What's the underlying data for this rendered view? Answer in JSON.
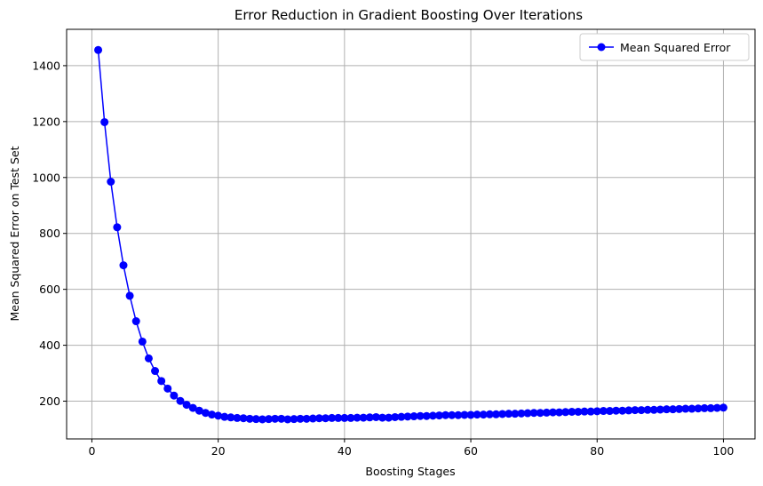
{
  "chart_data": {
    "type": "line",
    "title": "Error Reduction in Gradient Boosting Over Iterations",
    "xlabel": "Boosting Stages",
    "ylabel": "Mean Squared Error on Test Set",
    "xlim": [
      -4,
      105
    ],
    "ylim": [
      65,
      1530
    ],
    "xticks": [
      0,
      20,
      40,
      60,
      80,
      100
    ],
    "yticks": [
      200,
      400,
      600,
      800,
      1000,
      1200,
      1400
    ],
    "grid": true,
    "legend_position": "top-right",
    "series": [
      {
        "name": "Mean Squared Error",
        "color": "#0000ff",
        "marker": "circle",
        "x": [
          1,
          2,
          3,
          4,
          5,
          6,
          7,
          8,
          9,
          10,
          11,
          12,
          13,
          14,
          15,
          16,
          17,
          18,
          19,
          20,
          21,
          22,
          23,
          24,
          25,
          26,
          27,
          28,
          29,
          30,
          31,
          32,
          33,
          34,
          35,
          36,
          37,
          38,
          39,
          40,
          41,
          42,
          43,
          44,
          45,
          46,
          47,
          48,
          49,
          50,
          51,
          52,
          53,
          54,
          55,
          56,
          57,
          58,
          59,
          60,
          61,
          62,
          63,
          64,
          65,
          66,
          67,
          68,
          69,
          70,
          71,
          72,
          73,
          74,
          75,
          76,
          77,
          78,
          79,
          80,
          81,
          82,
          83,
          84,
          85,
          86,
          87,
          88,
          89,
          90,
          91,
          92,
          93,
          94,
          95,
          96,
          97,
          98,
          99,
          100
        ],
        "y": [
          1456,
          1198,
          985,
          822,
          686,
          577,
          486,
          413,
          353,
          308,
          272,
          245,
          220,
          201,
          187,
          176,
          166,
          158,
          152,
          148,
          144,
          142,
          140,
          139,
          137,
          136,
          135,
          136,
          137,
          137,
          135,
          136,
          137,
          137,
          138,
          139,
          139,
          140,
          140,
          140,
          140,
          141,
          141,
          142,
          143,
          141,
          141,
          143,
          144,
          145,
          146,
          147,
          147,
          148,
          149,
          150,
          150,
          150,
          151,
          151,
          152,
          152,
          153,
          153,
          154,
          155,
          155,
          156,
          157,
          158,
          158,
          159,
          160,
          160,
          161,
          162,
          162,
          163,
          163,
          164,
          165,
          165,
          166,
          166,
          167,
          168,
          168,
          169,
          169,
          170,
          171,
          171,
          172,
          173,
          173,
          174,
          175,
          175,
          176,
          177
        ]
      }
    ]
  }
}
